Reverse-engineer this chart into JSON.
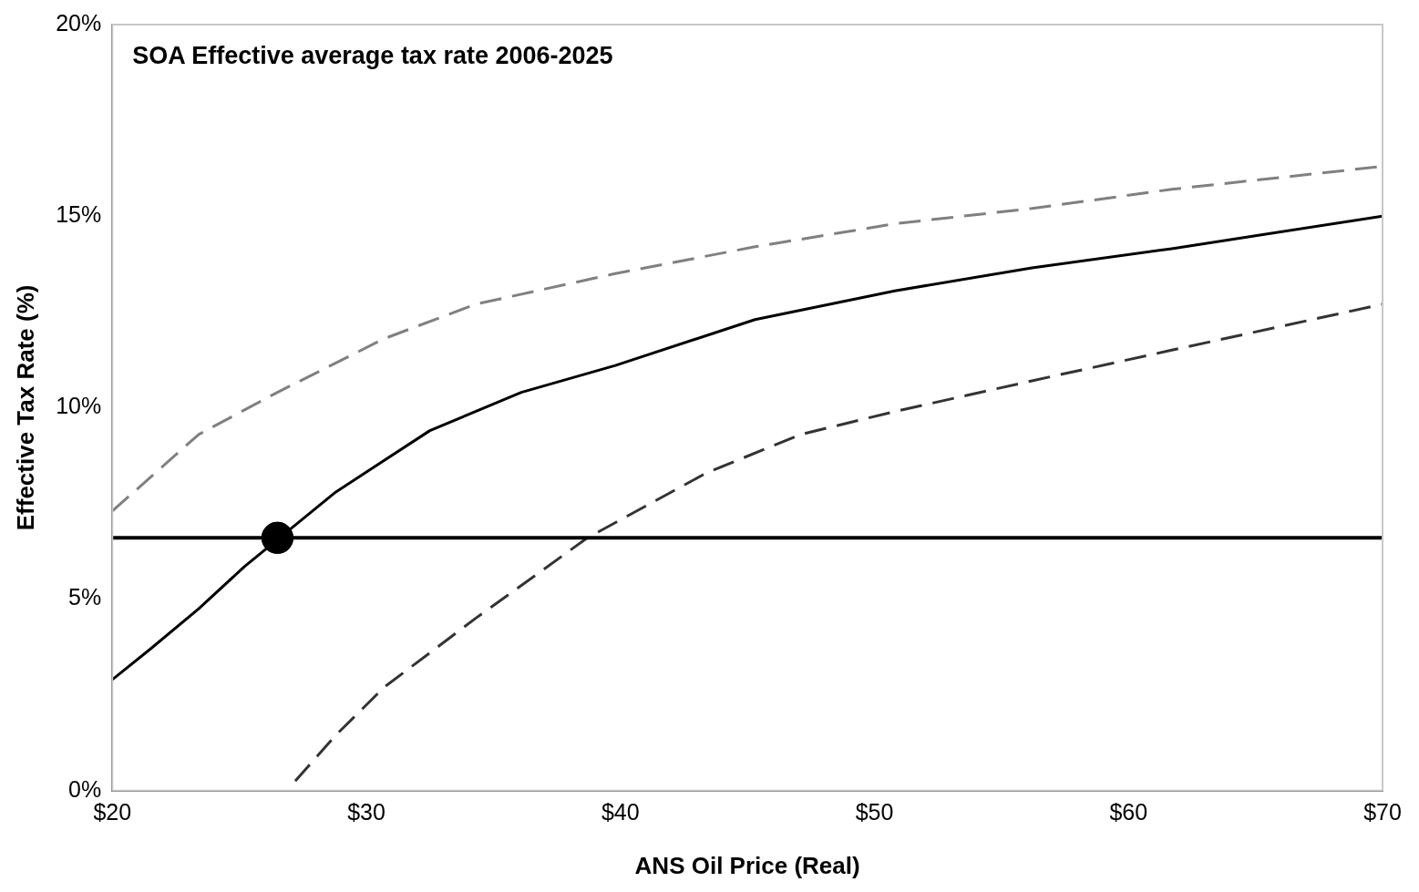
{
  "chart_data": {
    "type": "line",
    "title": "SOA Effective average tax rate 2006-2025",
    "xlabel": "ANS Oil Price (Real)",
    "ylabel": "Effective Tax Rate (%)",
    "xlim": [
      20,
      70
    ],
    "xticks": [
      {
        "value": 20,
        "label": "$20"
      },
      {
        "value": 30,
        "label": "$30"
      },
      {
        "value": 40,
        "label": "$40"
      },
      {
        "value": 50,
        "label": "$50"
      },
      {
        "value": 60,
        "label": "$60"
      },
      {
        "value": 70,
        "label": "$70"
      }
    ],
    "ylim": [
      0,
      20
    ],
    "yticks": [
      {
        "value": 0,
        "label": "0%"
      },
      {
        "value": 5,
        "label": "5%"
      },
      {
        "value": 10,
        "label": "10%"
      },
      {
        "value": 15,
        "label": "15%"
      },
      {
        "value": 20,
        "label": "20%"
      }
    ],
    "grid": false,
    "legend": false,
    "series": [
      {
        "type": "line",
        "color": "#808080",
        "line_style": "dashed",
        "marker": "none",
        "x": [
          20,
          23.4,
          26.5,
          30.7,
          34.3,
          39.8,
          45.3,
          50.8,
          56.2,
          61.7,
          70
        ],
        "values": [
          7.3,
          9.3,
          10.4,
          11.8,
          12.7,
          13.5,
          14.2,
          14.8,
          15.2,
          15.7,
          16.3
        ]
      },
      {
        "type": "line",
        "color": "#000000",
        "line_style": "solid",
        "marker": "none",
        "x": [
          20,
          21.5,
          23.4,
          25.2,
          28.8,
          32.5,
          36.1,
          39.8,
          45.3,
          50.8,
          56.2,
          61.7,
          70
        ],
        "values": [
          2.9,
          3.7,
          4.75,
          5.85,
          7.8,
          9.4,
          10.4,
          11.1,
          12.3,
          13.05,
          13.65,
          14.15,
          15
        ]
      },
      {
        "type": "line",
        "color": "#333333",
        "line_style": "dashed",
        "marker": "none",
        "x": [
          27.2,
          28.8,
          30.7,
          34.3,
          38.7,
          43.4,
          47.1,
          50.8,
          56.2,
          61.7,
          70
        ],
        "values": [
          0.25,
          1.45,
          2.7,
          4.5,
          6.6,
          8.3,
          9.3,
          9.9,
          10.7,
          11.5,
          12.7
        ]
      },
      {
        "type": "scatter",
        "color": "#000000",
        "marker": "circle",
        "x": [
          26.5
        ],
        "values": [
          6.6
        ]
      }
    ],
    "ref_lines": [
      {
        "axis": "y",
        "value": 6.6,
        "color": "#000000",
        "line_style": "solid"
      }
    ]
  }
}
